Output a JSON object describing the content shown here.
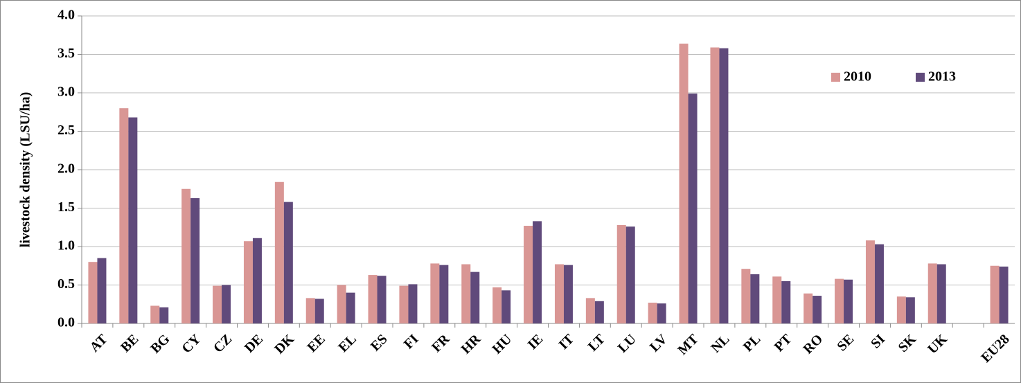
{
  "chart_data": {
    "type": "bar",
    "y_label": "livestock density (LSU/ha)",
    "categories": [
      "AT",
      "BE",
      "BG",
      "CY",
      "CZ",
      "DE",
      "DK",
      "EE",
      "EL",
      "ES",
      "FI",
      "FR",
      "HR",
      "HU",
      "IE",
      "IT",
      "LT",
      "LU",
      "LV",
      "MT",
      "NL",
      "PL",
      "PT",
      "RO",
      "SE",
      "SI",
      "SK",
      "UK",
      null,
      "EU28"
    ],
    "series": [
      {
        "name": "2010",
        "color": "#d99694",
        "values": [
          0.8,
          2.8,
          0.23,
          1.75,
          0.49,
          1.07,
          1.84,
          0.33,
          0.5,
          0.63,
          0.49,
          0.78,
          0.77,
          0.47,
          1.27,
          0.77,
          0.33,
          1.28,
          0.27,
          3.64,
          3.59,
          0.71,
          0.61,
          0.39,
          0.58,
          1.08,
          0.35,
          0.78,
          null,
          0.75
        ]
      },
      {
        "name": "2013",
        "color": "#604a7b",
        "values": [
          0.85,
          2.68,
          0.21,
          1.63,
          0.5,
          1.11,
          1.58,
          0.32,
          0.4,
          0.62,
          0.51,
          0.76,
          0.67,
          0.43,
          1.33,
          0.76,
          0.29,
          1.26,
          0.26,
          2.99,
          3.58,
          0.64,
          0.55,
          0.36,
          0.57,
          1.03,
          0.34,
          0.77,
          null,
          0.74
        ]
      }
    ],
    "ylim": [
      0,
      4
    ],
    "yticks": [
      {
        "value": 0,
        "label": "0.0"
      },
      {
        "value": 0.5,
        "label": "0.5"
      },
      {
        "value": 1,
        "label": "1.0"
      },
      {
        "value": 1.5,
        "label": "1.5"
      },
      {
        "value": 2,
        "label": "2.0"
      },
      {
        "value": 2.5,
        "label": "2.5"
      },
      {
        "value": 3,
        "label": "3.0"
      },
      {
        "value": 3.5,
        "label": "3.5"
      },
      {
        "value": 4,
        "label": "4.0"
      }
    ],
    "grid": true,
    "legend": "upper-right"
  }
}
